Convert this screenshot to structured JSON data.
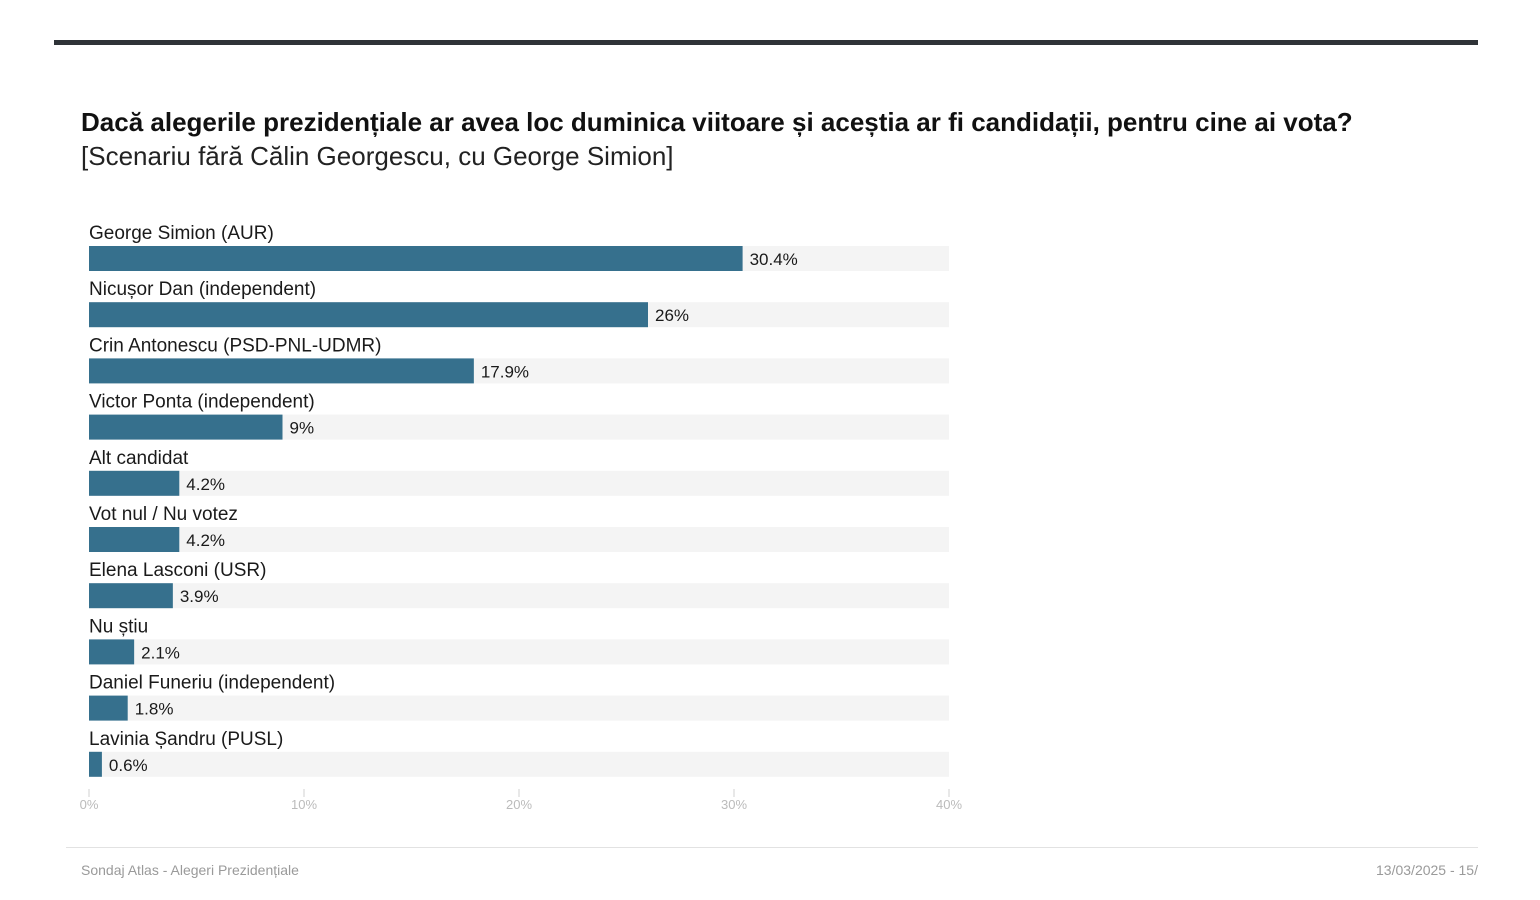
{
  "header": {
    "title": "Dacă alegerile prezidențiale ar avea loc duminica viitoare și aceștia ar fi candidații, pentru cine ai vota?",
    "subtitle": "[Scenariu fără Călin Georgescu, cu George Simion]"
  },
  "chart_data": {
    "type": "bar",
    "orientation": "horizontal",
    "categories": [
      "George Simion (AUR)",
      "Nicușor Dan (independent)",
      "Crin Antonescu (PSD-PNL-UDMR)",
      "Victor Ponta (independent)",
      "Alt candidat",
      "Vot nul / Nu votez",
      "Elena Lasconi (USR)",
      "Nu știu",
      "Daniel Funeriu (independent)",
      "Lavinia Șandru (PUSL)"
    ],
    "values": [
      30.4,
      26,
      17.9,
      9,
      4.2,
      4.2,
      3.9,
      2.1,
      1.8,
      0.6
    ],
    "value_labels": [
      "30.4%",
      "26%",
      "17.9%",
      "9%",
      "4.2%",
      "4.2%",
      "3.9%",
      "2.1%",
      "1.8%",
      "0.6%"
    ],
    "xlim": [
      0,
      40
    ],
    "x_ticks": [
      0,
      10,
      20,
      30,
      40
    ],
    "x_tick_labels": [
      "0%",
      "10%",
      "20%",
      "30%",
      "40%"
    ],
    "bar_color": "#36708d",
    "track_color": "#f4f4f4",
    "grid": false,
    "legend": "none"
  },
  "footer": {
    "source": "Sondaj Atlas - Alegeri Prezidențiale",
    "page": "13/03/2025 - 15/"
  }
}
